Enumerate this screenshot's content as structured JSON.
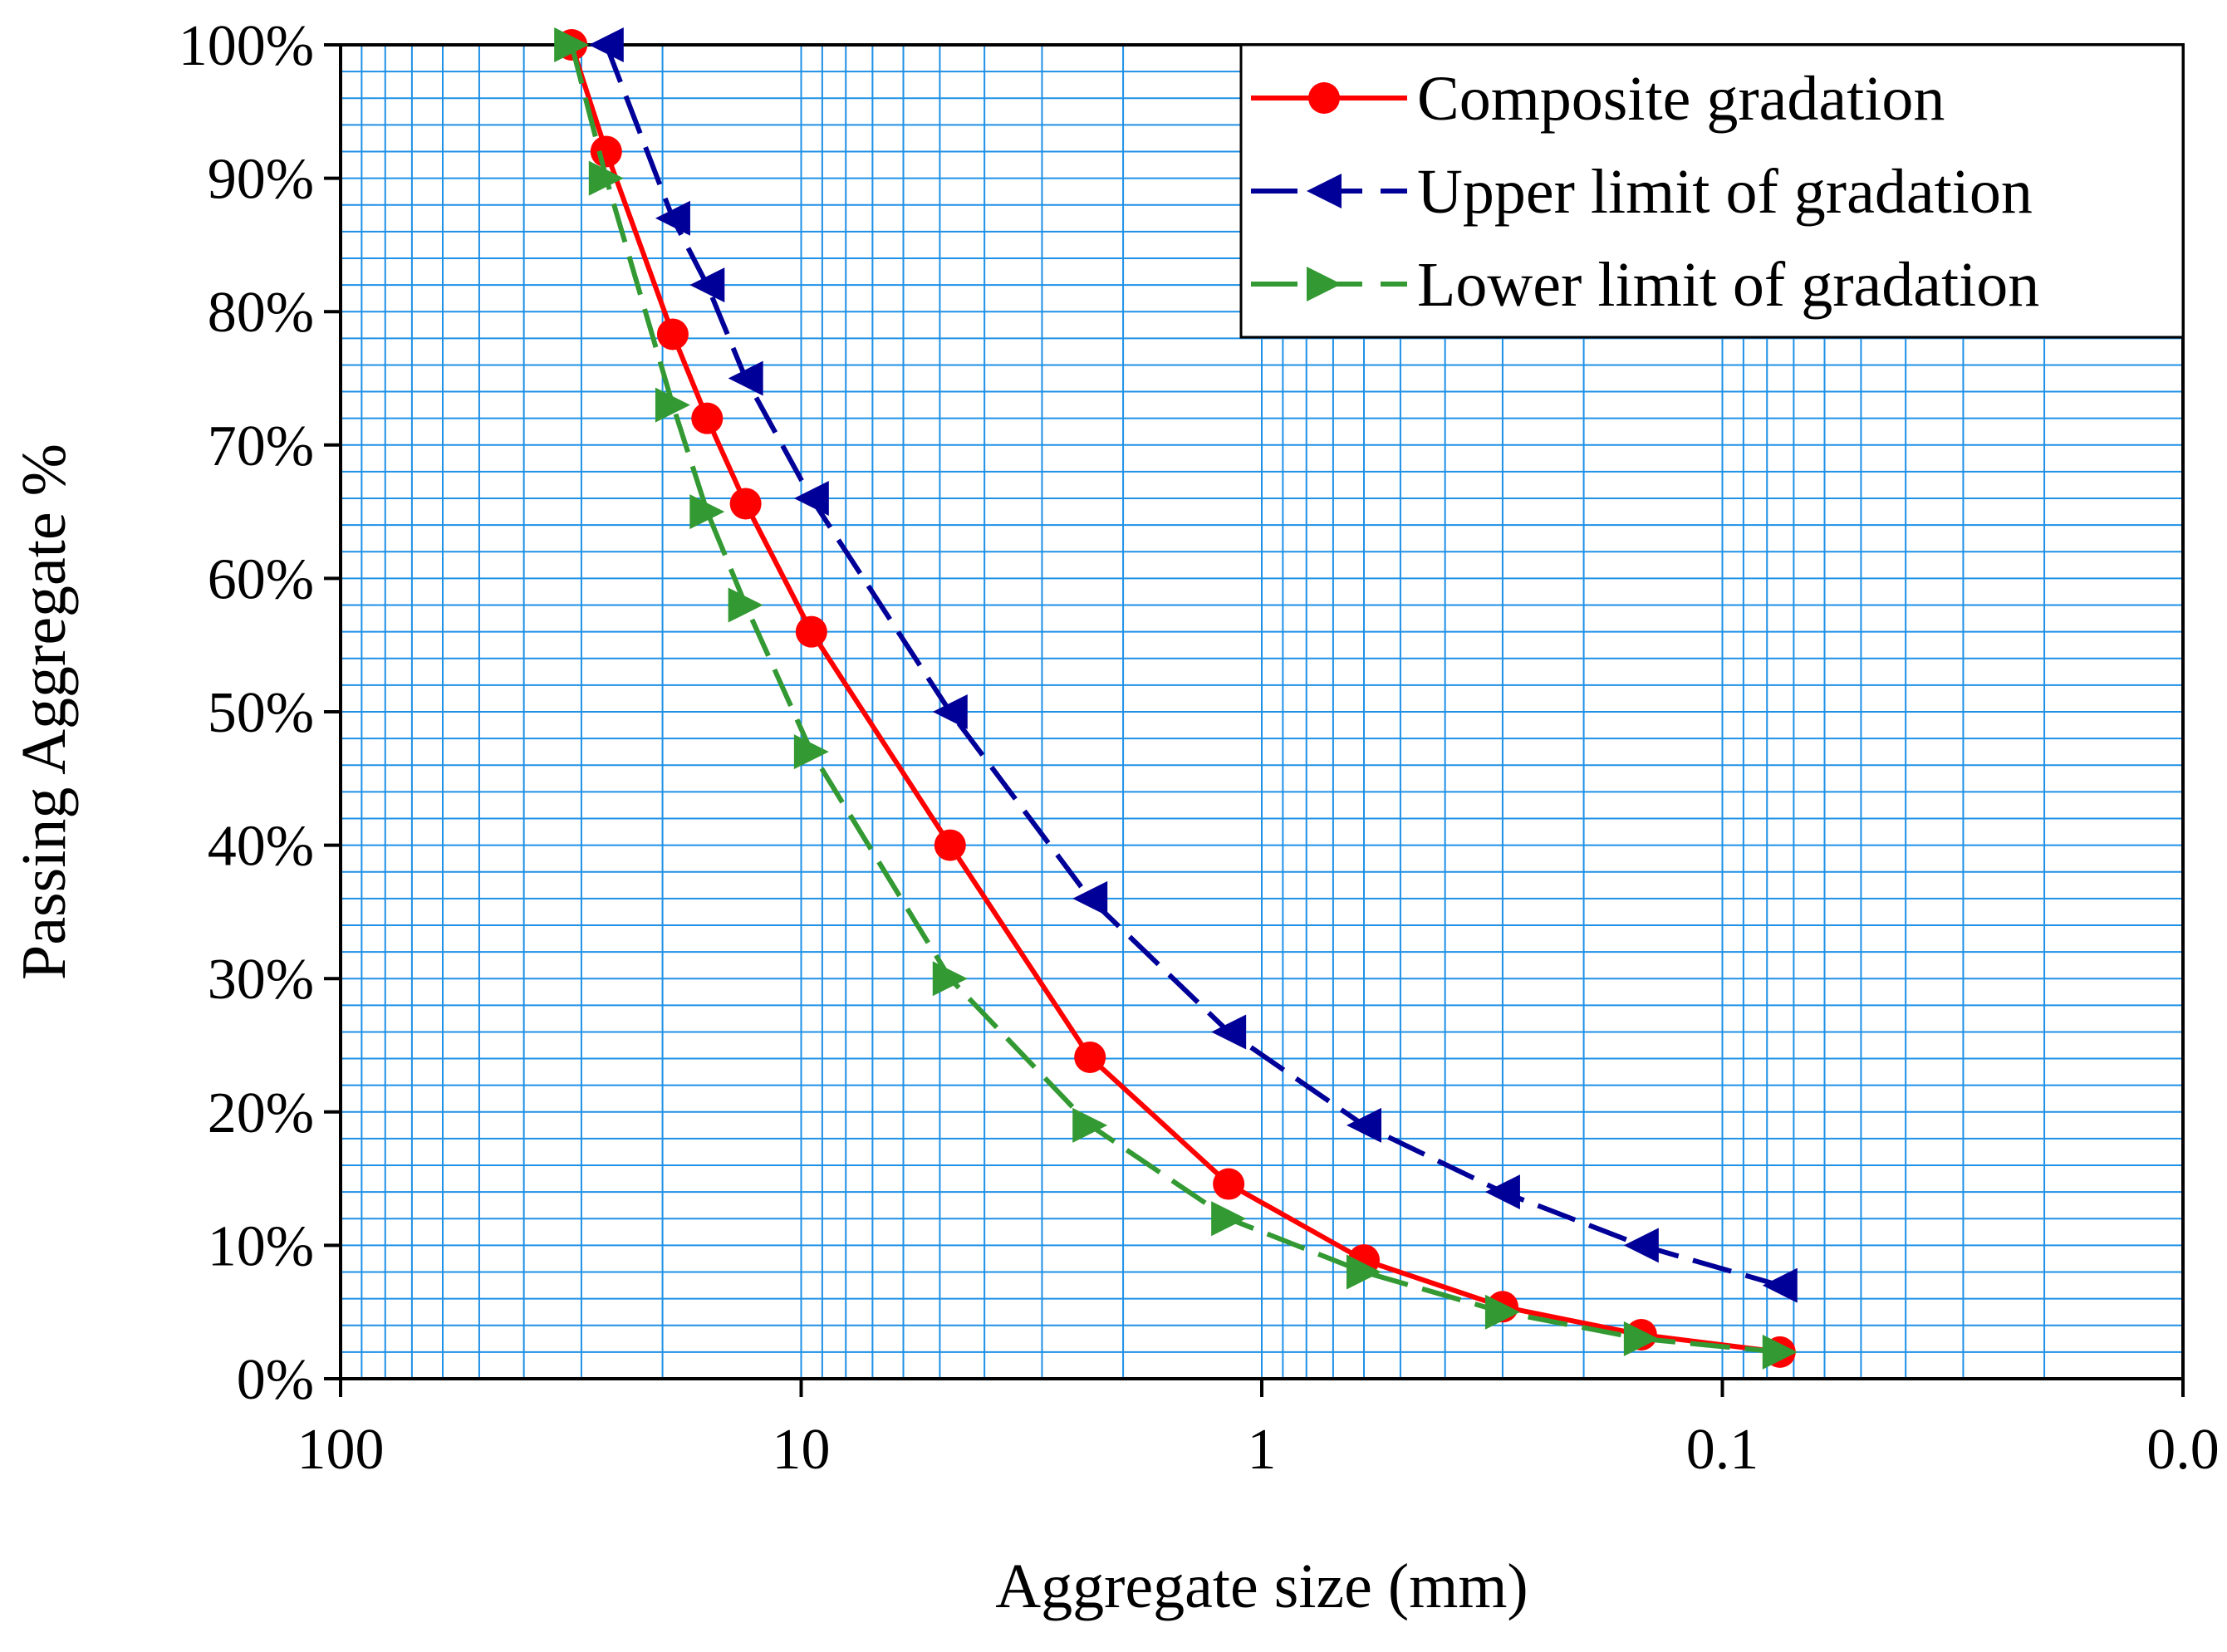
{
  "colors": {
    "grid": "#1e90e6",
    "axis": "#000000",
    "composite": "#ff0000",
    "upper": "#000099",
    "lower": "#339933"
  },
  "chart_data": {
    "type": "line",
    "xscale": "log",
    "x_reversed": true,
    "xlim": [
      100,
      0.01
    ],
    "ylim": [
      0,
      100
    ],
    "xlabel": "Aggregate size (mm)",
    "ylabel": "Passing Aggregate %",
    "x_ticks": [
      100,
      10,
      1,
      0.1,
      0.01
    ],
    "x_tick_labels": [
      "100",
      "10",
      "1",
      "0.1",
      "0.0"
    ],
    "y_ticks": [
      0,
      10,
      20,
      30,
      40,
      50,
      60,
      70,
      80,
      90,
      100
    ],
    "y_tick_labels": [
      "0%",
      "10%",
      "20%",
      "30%",
      "40%",
      "50%",
      "60%",
      "70%",
      "80%",
      "90%",
      "100%"
    ],
    "grid": true,
    "legend_position": "top-right",
    "series": [
      {
        "name": "Composite gradation",
        "marker": "circle",
        "line": "solid",
        "x": [
          31.5,
          26.5,
          19,
          16,
          13.2,
          9.5,
          4.75,
          2.36,
          1.18,
          0.6,
          0.3,
          0.15,
          0.075
        ],
        "y": [
          100,
          92,
          78.3,
          72,
          65.6,
          56,
          40,
          24.1,
          14.6,
          8.9,
          5.4,
          3.3,
          2
        ]
      },
      {
        "name": "Upper limit of gradation",
        "marker": "triangle-left",
        "line": "dashed",
        "x": [
          26.5,
          19,
          16,
          13.2,
          9.5,
          4.75,
          2.36,
          1.18,
          0.6,
          0.3,
          0.15,
          0.075
        ],
        "y": [
          100,
          87,
          82,
          75,
          66,
          50,
          36,
          26,
          19,
          14,
          10,
          7
        ]
      },
      {
        "name": "Lower limit of gradation",
        "marker": "triangle-right",
        "line": "dashed",
        "x": [
          31.5,
          26.5,
          19,
          16,
          13.2,
          9.5,
          4.75,
          2.36,
          1.18,
          0.6,
          0.3,
          0.15,
          0.075
        ],
        "y": [
          100,
          90,
          73,
          65,
          58,
          47,
          30,
          19,
          12,
          8,
          5,
          3,
          2
        ]
      }
    ]
  }
}
